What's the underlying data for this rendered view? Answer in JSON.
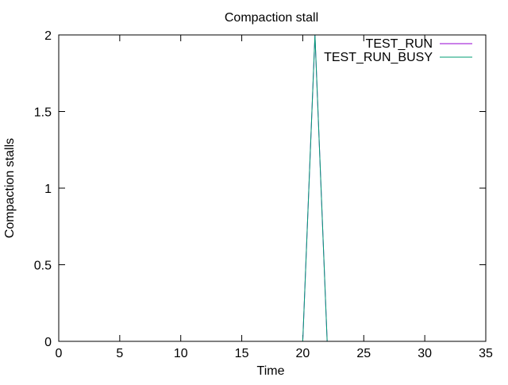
{
  "chart_data": {
    "type": "line",
    "title": "Compaction stall",
    "xlabel": "Time",
    "ylabel": "Compaction stalls",
    "xlim": [
      0,
      35
    ],
    "ylim": [
      0,
      2
    ],
    "xticks": [
      0,
      5,
      10,
      15,
      20,
      25,
      30,
      35
    ],
    "yticks": [
      0,
      0.5,
      1,
      1.5,
      2
    ],
    "xtick_labels": [
      "0",
      "5",
      "10",
      "15",
      "20",
      "25",
      "30",
      "35"
    ],
    "ytick_labels": [
      "0",
      "0.5",
      "1",
      "1.5",
      "2"
    ],
    "grid": false,
    "legend_position": "top-right",
    "series": [
      {
        "name": "TEST_RUN",
        "color": "#9400d3",
        "x": [
          0,
          1,
          2,
          3,
          4,
          5,
          6,
          7,
          8,
          9,
          10,
          11,
          12,
          13,
          14,
          15,
          16,
          17,
          18,
          19,
          20,
          21,
          22,
          23,
          24,
          25,
          26,
          27,
          28,
          29,
          30,
          31,
          32,
          33,
          34
        ],
        "y": [
          0,
          0,
          0,
          0,
          0,
          0,
          0,
          0,
          0,
          0,
          0,
          0,
          0,
          0,
          0,
          0,
          0,
          0,
          0,
          0,
          0,
          2,
          0,
          0,
          0,
          0,
          0,
          0,
          0,
          0,
          0,
          0,
          0,
          0,
          0
        ]
      },
      {
        "name": "TEST_RUN_BUSY",
        "color": "#009e73",
        "x": [
          0,
          1,
          2,
          3,
          4,
          5,
          6,
          7,
          8,
          9,
          10,
          11,
          12,
          13,
          14,
          15,
          16,
          17,
          18,
          19,
          20,
          21,
          22,
          23,
          24,
          25,
          26,
          27,
          28,
          29,
          30,
          31,
          32,
          33,
          34
        ],
        "y": [
          0,
          0,
          0,
          0,
          0,
          0,
          0,
          0,
          0,
          0,
          0,
          0,
          0,
          0,
          0,
          0,
          0,
          0,
          0,
          0,
          0,
          2,
          0,
          0,
          0,
          0,
          0,
          0,
          0,
          0,
          0,
          0,
          0,
          0,
          0
        ]
      }
    ]
  }
}
